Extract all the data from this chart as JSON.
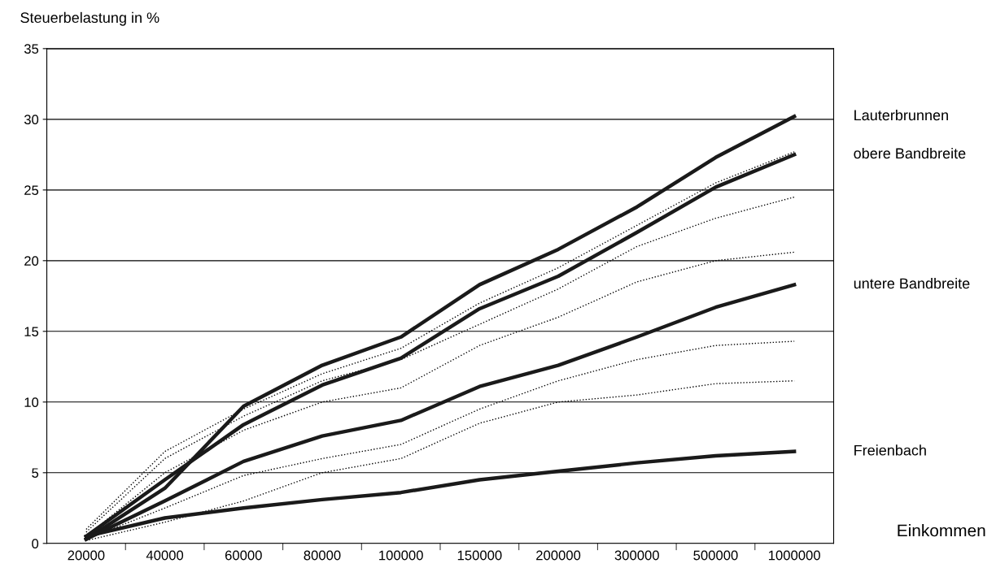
{
  "chart_data": {
    "type": "line",
    "ylabel": "Steuerbelastung in %",
    "annotations": [
      "Einkommen"
    ],
    "categories": [
      "20000",
      "40000",
      "60000",
      "80000",
      "100000",
      "150000",
      "200000",
      "300000",
      "500000",
      "1000000"
    ],
    "ylim": [
      0,
      35
    ],
    "yticks": [
      0,
      5,
      10,
      15,
      20,
      25,
      30,
      35
    ],
    "grid": "y",
    "series": [
      {
        "color": "#000000",
        "line_style": "dotted",
        "values": [
          0.2,
          1.5,
          3.0,
          5.0,
          6.0,
          8.5,
          10.0,
          10.5,
          11.3,
          11.5
        ]
      },
      {
        "color": "#000000",
        "line_style": "dotted",
        "values": [
          0.3,
          2.5,
          4.8,
          6.0,
          7.0,
          9.5,
          11.5,
          13.0,
          14.0,
          14.3
        ]
      },
      {
        "color": "#000000",
        "line_style": "dotted",
        "values": [
          0.5,
          5.0,
          8.0,
          10.0,
          11.0,
          14.0,
          16.0,
          18.5,
          20.0,
          20.6
        ]
      },
      {
        "color": "#000000",
        "line_style": "dotted",
        "values": [
          0.8,
          6.0,
          9.0,
          11.5,
          13.0,
          15.5,
          18.0,
          21.0,
          23.0,
          24.5
        ]
      },
      {
        "color": "#000000",
        "line_style": "dotted",
        "values": [
          1.0,
          6.5,
          9.5,
          12.0,
          13.8,
          17.0,
          19.5,
          22.5,
          25.5,
          27.7
        ]
      },
      {
        "name": "Lauterbrunnen",
        "color": "#1a1a1a",
        "line_style": "solid",
        "values": [
          0.3,
          3.9,
          9.7,
          12.6,
          14.6,
          18.3,
          20.8,
          23.8,
          27.3,
          30.2
        ]
      },
      {
        "name": "obere Bandbreite",
        "color": "#1a1a1a",
        "line_style": "solid",
        "values": [
          0.5,
          4.5,
          8.4,
          11.2,
          13.1,
          16.6,
          18.9,
          22.0,
          25.2,
          27.5
        ]
      },
      {
        "name": "untere Bandbreite",
        "color": "#1a1a1a",
        "line_style": "solid",
        "values": [
          0.3,
          3.0,
          5.8,
          7.6,
          8.7,
          11.1,
          12.6,
          14.6,
          16.7,
          18.3
        ]
      },
      {
        "name": "Freienbach",
        "color": "#1a1a1a",
        "line_style": "solid",
        "values": [
          0.5,
          1.8,
          2.5,
          3.1,
          3.6,
          4.5,
          5.1,
          5.7,
          6.2,
          6.5
        ]
      }
    ]
  }
}
